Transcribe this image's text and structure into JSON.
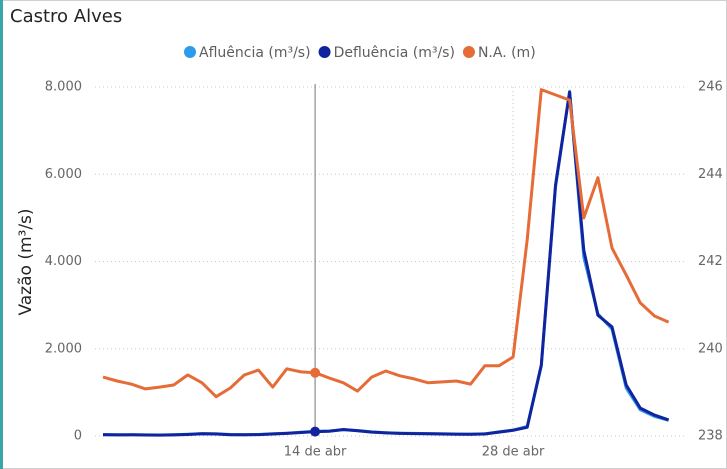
{
  "chart_data": {
    "type": "line",
    "title": "Castro Alves",
    "y_axis_label": "Vazão (m³/s)",
    "categories": [
      null,
      null,
      null,
      null,
      null,
      null,
      null,
      null,
      null,
      null,
      null,
      null,
      null,
      null,
      null,
      "14 de abr",
      null,
      null,
      null,
      null,
      null,
      null,
      null,
      null,
      null,
      null,
      null,
      null,
      null,
      "28 de abr",
      null,
      null,
      null,
      null,
      null,
      null,
      null,
      null,
      null,
      null,
      null
    ],
    "series": [
      {
        "name": "Afluência (m³/s)",
        "color": "#2b9bea",
        "values": [
          35,
          30,
          30,
          25,
          22,
          28,
          40,
          55,
          50,
          35,
          30,
          35,
          50,
          65,
          85,
          105,
          115,
          145,
          125,
          95,
          75,
          65,
          60,
          55,
          50,
          45,
          40,
          50,
          95,
          135,
          220,
          1600,
          5700,
          7900,
          4100,
          2800,
          2450,
          1100,
          600,
          450,
          360
        ]
      },
      {
        "name": "Defluência (m³/s)",
        "color": "#12239e",
        "values": [
          30,
          25,
          28,
          22,
          20,
          25,
          35,
          50,
          45,
          30,
          28,
          32,
          45,
          60,
          80,
          100,
          110,
          150,
          120,
          90,
          70,
          60,
          55,
          50,
          45,
          40,
          38,
          45,
          90,
          130,
          200,
          1630,
          5750,
          7880,
          4260,
          2770,
          2500,
          1170,
          640,
          480,
          370
        ]
      },
      {
        "name": "N.A. (m)",
        "color": "#e66c37",
        "axis": "y2",
        "values": [
          239.35,
          239.26,
          239.19,
          239.08,
          239.12,
          239.17,
          239.4,
          239.22,
          238.9,
          239.1,
          239.4,
          239.51,
          239.12,
          239.54,
          239.47,
          239.45,
          239.33,
          239.22,
          239.03,
          239.35,
          239.49,
          239.38,
          239.31,
          239.22,
          239.24,
          239.26,
          239.19,
          239.61,
          239.61,
          239.81,
          242.5,
          245.94,
          245.82,
          245.7,
          243.0,
          243.92,
          242.31,
          241.69,
          241.05,
          240.75,
          240.61
        ]
      }
    ],
    "ylim": [
      0,
      8000
    ],
    "yticks": [
      0,
      {
        "value": 2000,
        "label": "2.000"
      },
      {
        "value": 4000,
        "label": "4.000"
      },
      {
        "value": 6000,
        "label": "6.000"
      },
      {
        "value": 8000,
        "label": "8.000"
      }
    ],
    "y2lim": [
      238,
      246
    ],
    "y2ticks": [
      238,
      240,
      242,
      244,
      246
    ],
    "grid": true,
    "legend": "top"
  }
}
